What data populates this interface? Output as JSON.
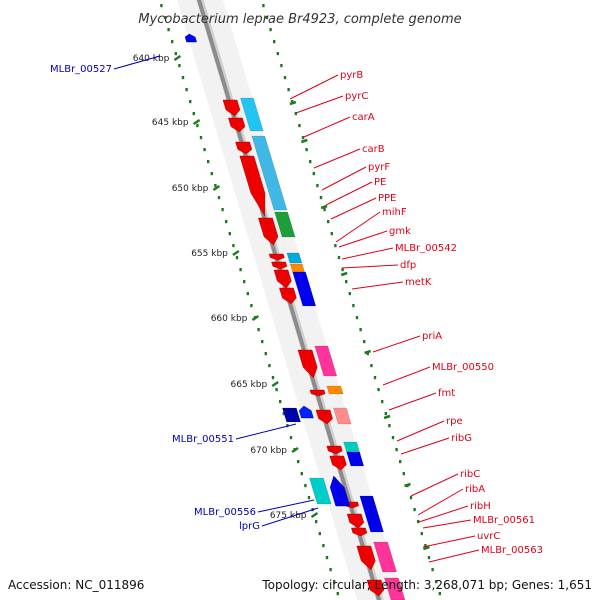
{
  "map": {
    "title": "Mycobacterium leprae Br4923, complete genome",
    "colors": {
      "label_red": "#e0001a",
      "label_blue": "#0000bb",
      "tick_green": "#1f7a1f",
      "backbone": "#8c8c8c"
    },
    "ruler": [
      {
        "kbp": 640,
        "label": "640 kbp"
      },
      {
        "kbp": 645,
        "label": "645 kbp"
      },
      {
        "kbp": 650,
        "label": "650 kbp"
      },
      {
        "kbp": 655,
        "label": "655 kbp"
      },
      {
        "kbp": 660,
        "label": "660 kbp"
      },
      {
        "kbp": 665,
        "label": "665 kbp"
      },
      {
        "kbp": 670,
        "label": "670 kbp"
      },
      {
        "kbp": 675,
        "label": "675 kbp"
      }
    ],
    "forward_labels": [
      "pyrB",
      "pyrC",
      "carA",
      "carB",
      "pyrF",
      "PE",
      "PPE",
      "mihF",
      "gmk",
      "MLBr_00542",
      "dfp",
      "metK",
      "priA",
      "MLBr_00550",
      "fmt",
      "rpe",
      "ribG",
      "ribC",
      "ribA",
      "ribH",
      "MLBr_00561",
      "uvrC",
      "MLBr_00563"
    ],
    "reverse_labels": [
      "MLBr_00527",
      "MLBr_00551",
      "MLBr_00556",
      "lprG"
    ]
  },
  "footer": {
    "accession": "Accession: NC_011896",
    "summary": "Topology: circular; Length: 3,268,071 bp; Genes: 1,651"
  }
}
